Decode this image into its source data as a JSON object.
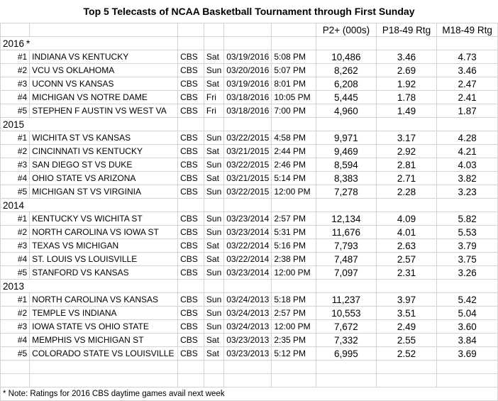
{
  "title": "Top 5 Telecasts of NCAA Basketball Tournament through First Sunday",
  "headers": {
    "p2": "P2+ (000s)",
    "p1849": "P18-49 Rtg",
    "m1849": "M18-49 Rtg"
  },
  "sections": [
    {
      "year": "2016",
      "note": "*",
      "rows": [
        {
          "rank": "#1",
          "game": "INDIANA VS KENTUCKY",
          "net": "CBS",
          "day": "Sat",
          "date": "03/19/2016",
          "time": "5:08 PM",
          "p2": "10,486",
          "p1849": "3.46",
          "m1849": "4.73"
        },
        {
          "rank": "#2",
          "game": "VCU VS OKLAHOMA",
          "net": "CBS",
          "day": "Sun",
          "date": "03/20/2016",
          "time": "5:07 PM",
          "p2": "8,262",
          "p1849": "2.69",
          "m1849": "3.46"
        },
        {
          "rank": "#3",
          "game": "UCONN VS KANSAS",
          "net": "CBS",
          "day": "Sat",
          "date": "03/19/2016",
          "time": "8:01 PM",
          "p2": "6,208",
          "p1849": "1.92",
          "m1849": "2.47"
        },
        {
          "rank": "#4",
          "game": "MICHIGAN  VS NOTRE DAME",
          "net": "CBS",
          "day": "Fri",
          "date": "03/18/2016",
          "time": "10:05 PM",
          "p2": "5,445",
          "p1849": "1.78",
          "m1849": "2.41"
        },
        {
          "rank": "#5",
          "game": "STEPHEN F AUSTIN VS WEST VA",
          "net": "CBS",
          "day": "Fri",
          "date": "03/18/2016",
          "time": "7:00 PM",
          "p2": "4,960",
          "p1849": "1.49",
          "m1849": "1.87"
        }
      ]
    },
    {
      "year": "2015",
      "note": "",
      "rows": [
        {
          "rank": "#1",
          "game": "WICHITA ST VS KANSAS",
          "net": "CBS",
          "day": "Sun",
          "date": "03/22/2015",
          "time": "4:58 PM",
          "p2": "9,971",
          "p1849": "3.17",
          "m1849": "4.28"
        },
        {
          "rank": "#2",
          "game": "CINCINNATI VS KENTUCKY",
          "net": "CBS",
          "day": "Sat",
          "date": "03/21/2015",
          "time": "2:44 PM",
          "p2": "9,469",
          "p1849": "2.92",
          "m1849": "4.21"
        },
        {
          "rank": "#3",
          "game": "SAN DIEGO ST VS DUKE",
          "net": "CBS",
          "day": "Sun",
          "date": "03/22/2015",
          "time": "2:46 PM",
          "p2": "8,594",
          "p1849": "2.81",
          "m1849": "4.03"
        },
        {
          "rank": "#4",
          "game": "OHIO STATE VS ARIZONA",
          "net": "CBS",
          "day": "Sat",
          "date": "03/21/2015",
          "time": "5:14 PM",
          "p2": "8,383",
          "p1849": "2.71",
          "m1849": "3.82"
        },
        {
          "rank": "#5",
          "game": "MICHIGAN ST VS VIRGINIA",
          "net": "CBS",
          "day": "Sun",
          "date": "03/22/2015",
          "time": "12:00 PM",
          "p2": "7,278",
          "p1849": "2.28",
          "m1849": "3.23"
        }
      ]
    },
    {
      "year": "2014",
      "note": "",
      "rows": [
        {
          "rank": "#1",
          "game": "KENTUCKY VS WICHITA ST",
          "net": "CBS",
          "day": "Sun",
          "date": "03/23/2014",
          "time": "2:57 PM",
          "p2": "12,134",
          "p1849": "4.09",
          "m1849": "5.82"
        },
        {
          "rank": "#2",
          "game": "NORTH CAROLINA VS IOWA ST",
          "net": "CBS",
          "day": "Sun",
          "date": "03/23/2014",
          "time": "5:31 PM",
          "p2": "11,676",
          "p1849": "4.01",
          "m1849": "5.53"
        },
        {
          "rank": "#3",
          "game": "TEXAS VS MICHIGAN",
          "net": "CBS",
          "day": "Sat",
          "date": "03/22/2014",
          "time": "5:16 PM",
          "p2": "7,793",
          "p1849": "2.63",
          "m1849": "3.79"
        },
        {
          "rank": "#4",
          "game": "ST. LOUIS VS LOUISVILLE",
          "net": "CBS",
          "day": "Sat",
          "date": "03/22/2014",
          "time": "2:38 PM",
          "p2": "7,487",
          "p1849": "2.57",
          "m1849": "3.75"
        },
        {
          "rank": "#5",
          "game": "STANFORD VS KANSAS",
          "net": "CBS",
          "day": "Sun",
          "date": "03/23/2014",
          "time": "12:00 PM",
          "p2": "7,097",
          "p1849": "2.31",
          "m1849": "3.26"
        }
      ]
    },
    {
      "year": "2013",
      "note": "",
      "rows": [
        {
          "rank": "#1",
          "game": "NORTH CAROLINA VS KANSAS",
          "net": "CBS",
          "day": "Sun",
          "date": "03/24/2013",
          "time": "5:18 PM",
          "p2": "11,237",
          "p1849": "3.97",
          "m1849": "5.42"
        },
        {
          "rank": "#2",
          "game": "TEMPLE VS INDIANA",
          "net": "CBS",
          "day": "Sun",
          "date": "03/24/2013",
          "time": "2:57 PM",
          "p2": "10,553",
          "p1849": "3.51",
          "m1849": "5.04"
        },
        {
          "rank": "#3",
          "game": "IOWA STATE VS OHIO STATE",
          "net": "CBS",
          "day": "Sun",
          "date": "03/24/2013",
          "time": "12:00 PM",
          "p2": "7,672",
          "p1849": "2.49",
          "m1849": "3.60"
        },
        {
          "rank": "#4",
          "game": "MEMPHIS VS MICHIGAN ST",
          "net": "CBS",
          "day": "Sat",
          "date": "03/23/2013",
          "time": "2:35 PM",
          "p2": "7,332",
          "p1849": "2.55",
          "m1849": "3.84"
        },
        {
          "rank": "#5",
          "game": "COLORADO STATE VS LOUISVILLE",
          "net": "CBS",
          "day": "Sat",
          "date": "03/23/2013",
          "time": "5:12 PM",
          "p2": "6,995",
          "p1849": "2.52",
          "m1849": "3.69"
        }
      ]
    }
  ],
  "footnote": "* Note: Ratings for 2016 CBS daytime games avail next week"
}
